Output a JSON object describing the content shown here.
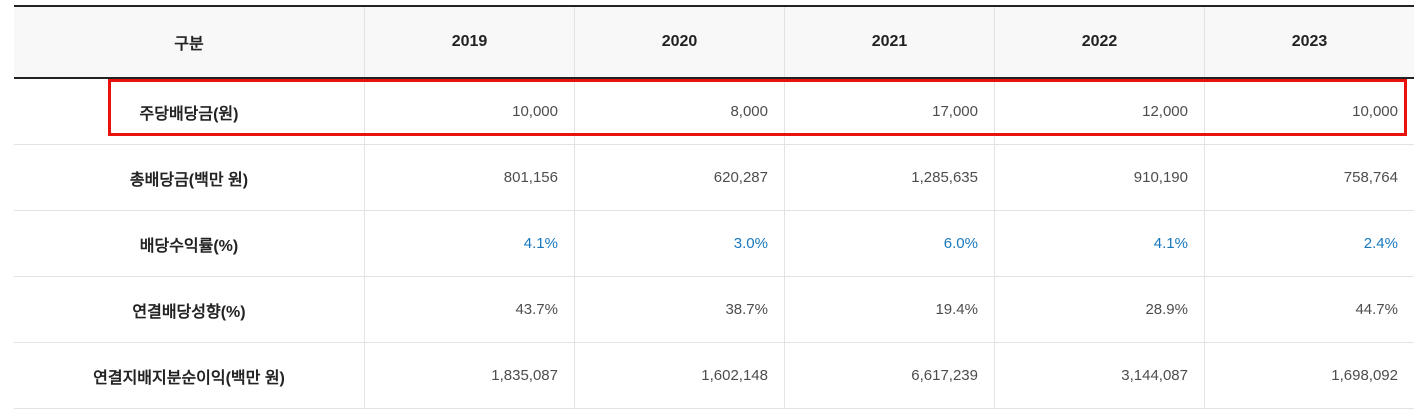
{
  "colors": {
    "percent_blue": "#1778be",
    "highlight_red": "#e8120c",
    "header_background": "#f8f8f8",
    "dark_border": "#222222",
    "light_border": "#e3e3e3"
  },
  "table": {
    "header": {
      "category_label": "구분",
      "years": [
        "2019",
        "2020",
        "2021",
        "2022",
        "2023"
      ]
    },
    "rows": [
      {
        "label": "주당배당금(원)",
        "values": [
          "10,000",
          "8,000",
          "17,000",
          "12,000",
          "10,000"
        ],
        "highlighted": true,
        "value_style": "default"
      },
      {
        "label": "총배당금(백만 원)",
        "values": [
          "801,156",
          "620,287",
          "1,285,635",
          "910,190",
          "758,764"
        ],
        "highlighted": false,
        "value_style": "default"
      },
      {
        "label": "배당수익률(%)",
        "values": [
          "4.1%",
          "3.0%",
          "6.0%",
          "4.1%",
          "2.4%"
        ],
        "highlighted": false,
        "value_style": "blue"
      },
      {
        "label": "연결배당성향(%)",
        "values": [
          "43.7%",
          "38.7%",
          "19.4%",
          "28.9%",
          "44.7%"
        ],
        "highlighted": false,
        "value_style": "default"
      },
      {
        "label": "연결지배지분순이익(백만 원)",
        "values": [
          "1,835,087",
          "1,602,148",
          "6,617,239",
          "3,144,087",
          "1,698,092"
        ],
        "highlighted": false,
        "value_style": "default"
      }
    ]
  },
  "chart_data": {
    "type": "table",
    "title": "배당 정보 (2019-2023)",
    "columns": [
      "구분",
      "2019",
      "2020",
      "2021",
      "2022",
      "2023"
    ],
    "rows": [
      {
        "구분": "주당배당금(원)",
        "values": [
          10000,
          8000,
          17000,
          12000,
          10000
        ]
      },
      {
        "구분": "총배당금(백만 원)",
        "values": [
          801156,
          620287,
          1285635,
          910190,
          758764
        ]
      },
      {
        "구분": "배당수익률(%)",
        "values": [
          4.1,
          3.0,
          6.0,
          4.1,
          2.4
        ]
      },
      {
        "구분": "연결배당성향(%)",
        "values": [
          43.7,
          38.7,
          19.4,
          28.9,
          44.7
        ]
      },
      {
        "구분": "연결지배지분순이익(백만 원)",
        "values": [
          1835087,
          1602148,
          6617239,
          3144087,
          1698092
        ]
      }
    ],
    "annotations": [
      "주당배당금(원) 행이 빨간 사각형으로 강조됨"
    ],
    "layout_hints": {
      "value_alignment": "right",
      "header_alignment": "center",
      "dividend_yield_row_color": "#1778be"
    }
  }
}
